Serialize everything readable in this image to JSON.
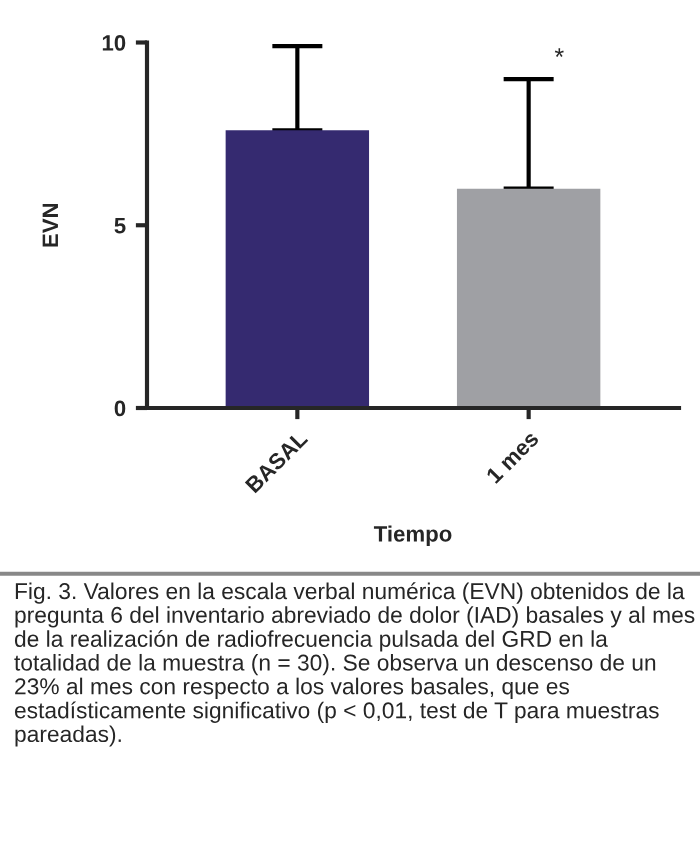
{
  "chart_data": {
    "type": "bar",
    "categories": [
      "BASAL",
      "1 mes"
    ],
    "values": [
      7.6,
      6.0
    ],
    "colors": [
      "#352a70",
      "#9fa0a4"
    ],
    "errors": [
      [
        7.6,
        9.9
      ],
      [
        6.0,
        9.0
      ]
    ],
    "xlabel": "Tiempo",
    "ylabel": "EVN",
    "ylim": [
      0,
      10
    ],
    "yticks": [
      0,
      5,
      10
    ],
    "annotations": [
      "*",
      "Fig. 3. Valores en la escala verbal numérica (EVN) obtenidos de la pregunta 6 del inventario abreviado de dolor (IAD) basales y al mes de la realización de radiofrecuencia pulsada del GRD en la totalidad de la muestra (n = 30). Se observa un descenso de un 23% al mes con respecto a los valores basales, que es estadísticamente significativo (p < 0,01, test de T para muestras pareadas)."
    ]
  }
}
